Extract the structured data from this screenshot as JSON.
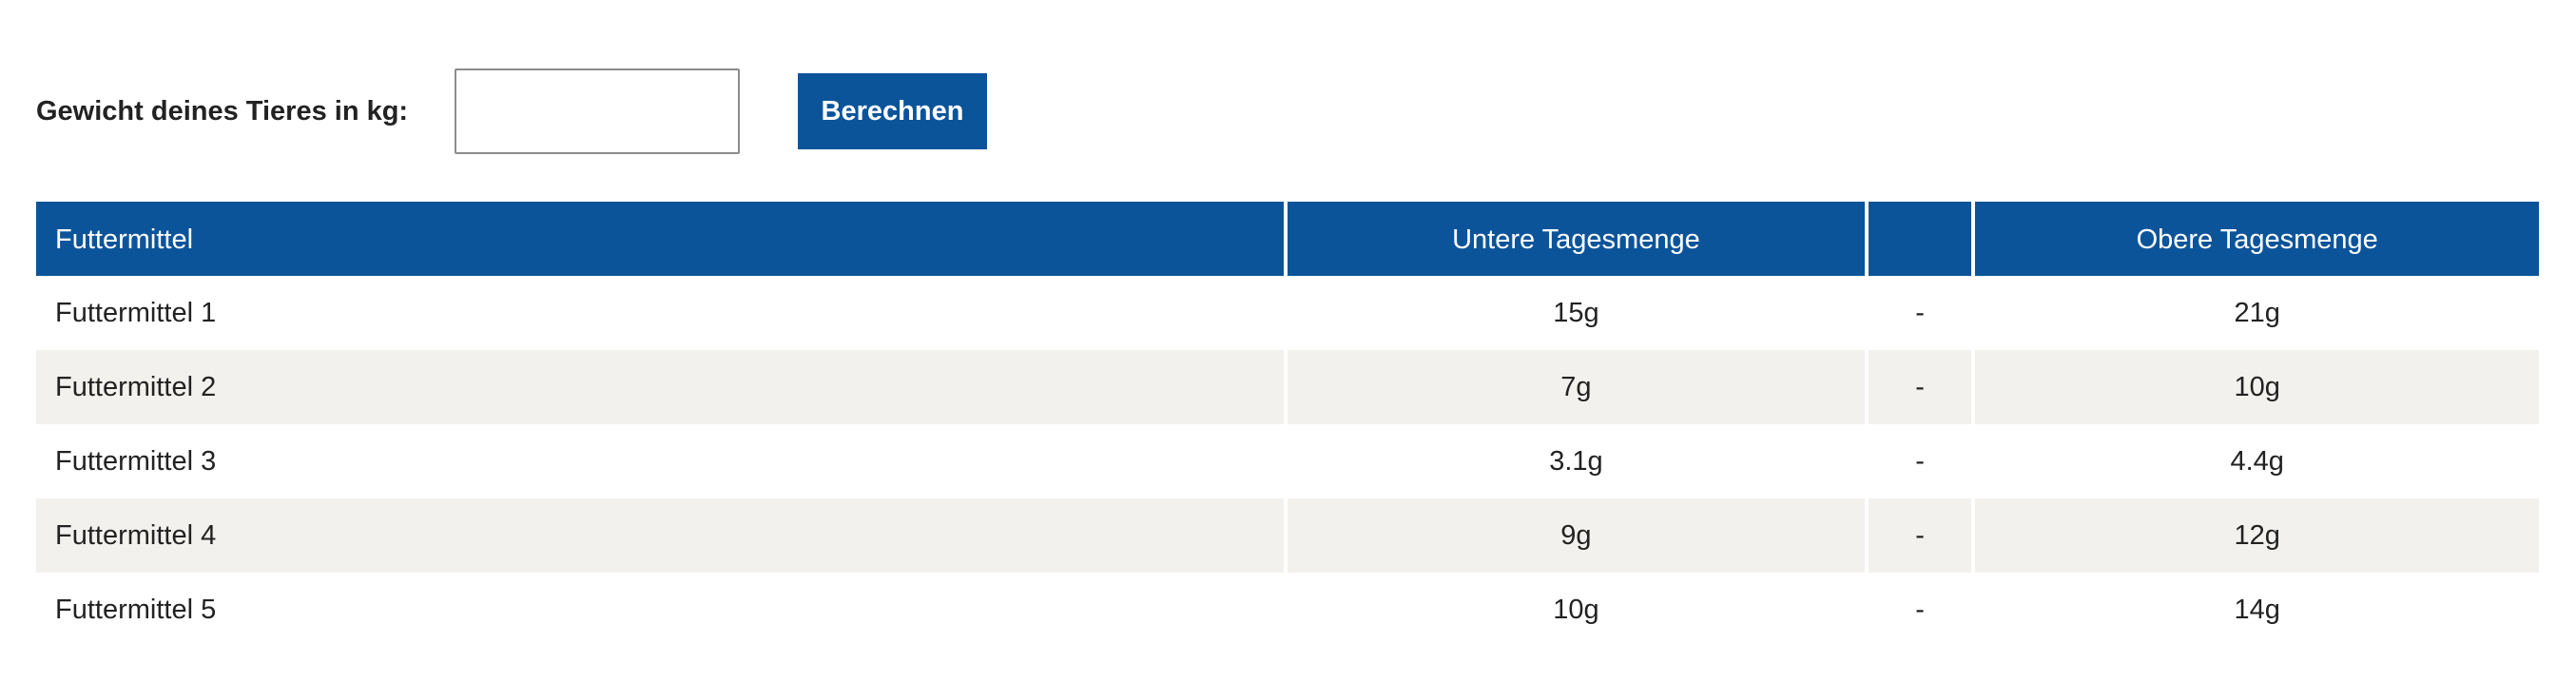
{
  "form": {
    "weight_label": "Gewicht deines Tieres in kg:",
    "weight_value": "",
    "weight_placeholder": "",
    "calculate_label": "Berechnen"
  },
  "table": {
    "headers": {
      "name": "Futtermittel",
      "lower": "Untere Tagesmenge",
      "separator": "",
      "upper": "Obere Tagesmenge"
    },
    "rows": [
      {
        "name": "Futtermittel 1",
        "lower": "15g",
        "separator": "-",
        "upper": "21g"
      },
      {
        "name": "Futtermittel 2",
        "lower": "7g",
        "separator": "-",
        "upper": "10g"
      },
      {
        "name": "Futtermittel 3",
        "lower": "3.1g",
        "separator": "-",
        "upper": "4.4g"
      },
      {
        "name": "Futtermittel 4",
        "lower": "9g",
        "separator": "-",
        "upper": "12g"
      },
      {
        "name": "Futtermittel 5",
        "lower": "10g",
        "separator": "-",
        "upper": "14g"
      }
    ]
  },
  "colors": {
    "accent": "#0c549a",
    "row_stripe": "#f2f1ee",
    "text": "#222222"
  }
}
